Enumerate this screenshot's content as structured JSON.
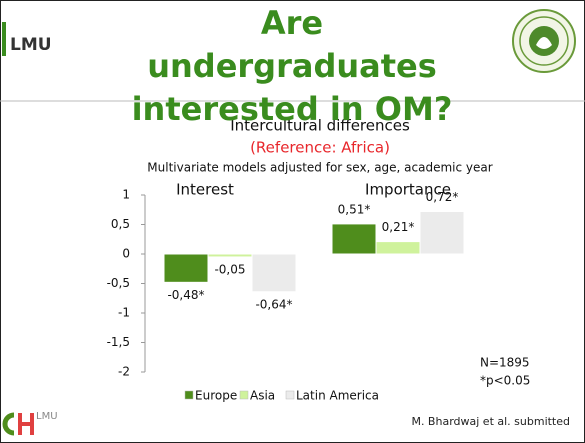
{
  "logo_text": "LMU",
  "footer_logo_text": "LMU",
  "source": "M. Bhardwaj et al. submitted",
  "chart_data": {
    "type": "bar",
    "title": "Are undergraduates interested in OM?",
    "subtitle": "Intercultural differences",
    "reference": "(Reference: Africa)",
    "note": "Multivariate models adjusted for sex, age, academic year",
    "categories": [
      "Interest",
      "Importance"
    ],
    "series": [
      {
        "name": "Europe",
        "color": "#4f8d1c",
        "values": [
          -0.48,
          0.51
        ],
        "value_labels": [
          "-0,48*",
          "0,51*"
        ]
      },
      {
        "name": "Asia",
        "color": "#cff29c",
        "values": [
          -0.05,
          0.21
        ],
        "value_labels": [
          "-0,05",
          "0,21*"
        ]
      },
      {
        "name": "Latin America",
        "color": "#ebebeb",
        "values": [
          -0.64,
          0.72
        ],
        "value_labels": [
          "-0,64*",
          "0,72*"
        ]
      }
    ],
    "ylim": [
      -2,
      1
    ],
    "yticks": [
      {
        "value": -2,
        "label": "-2"
      },
      {
        "value": -1.5,
        "label": "-1,5"
      },
      -1,
      {
        "value": -0.5,
        "label": "-0,5"
      },
      0,
      {
        "value": 0.5,
        "label": "0,5"
      },
      1
    ],
    "legend": "bottom",
    "annotations": [
      "N=1895",
      "*p<0.05"
    ]
  }
}
